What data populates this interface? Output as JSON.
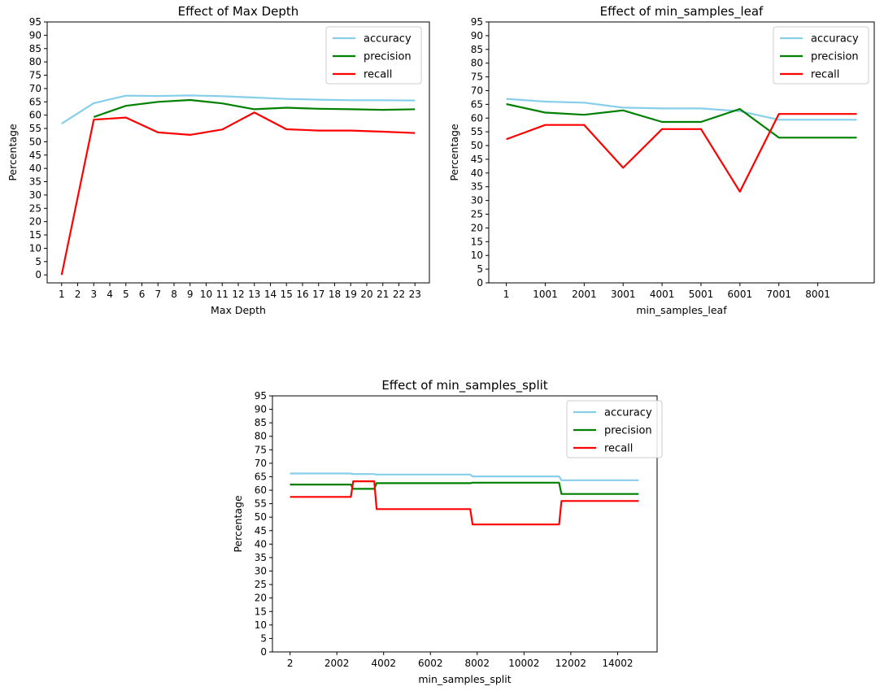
{
  "charts": [
    {
      "type": "line",
      "title": "Effect of Max Depth",
      "xlabel": "Max Depth",
      "ylabel": "Percentage",
      "xlim": [
        0.1,
        23.9
      ],
      "ylim": [
        -3,
        95
      ],
      "xticks": [
        1,
        2,
        3,
        4,
        5,
        6,
        7,
        8,
        9,
        10,
        11,
        12,
        13,
        14,
        15,
        16,
        17,
        18,
        19,
        20,
        21,
        22,
        23
      ],
      "xtick_labels": [
        "1",
        "2",
        "3",
        "4",
        "5",
        "6",
        "7",
        "8",
        "9",
        "10",
        "11",
        "12",
        "13",
        "14",
        "15",
        "16",
        "17",
        "18",
        "19",
        "20",
        "21",
        "22",
        "23"
      ],
      "yticks": [
        0,
        5,
        10,
        15,
        20,
        25,
        30,
        35,
        40,
        45,
        50,
        55,
        60,
        65,
        70,
        75,
        80,
        85,
        90,
        95
      ],
      "legend": "top-right",
      "series": [
        {
          "name": "accuracy",
          "color": "#87ceeb",
          "x": [
            1,
            3,
            5,
            7,
            9,
            11,
            13,
            15,
            17,
            19,
            21,
            23
          ],
          "y": [
            56.8,
            64.5,
            67.3,
            67.2,
            67.4,
            67.1,
            66.6,
            66.1,
            65.8,
            65.6,
            65.6,
            65.5
          ]
        },
        {
          "name": "precision",
          "color": "#008000",
          "x": [
            3,
            5,
            7,
            9,
            11,
            13,
            15,
            17,
            19,
            21,
            23
          ],
          "y": [
            59.3,
            63.5,
            65.0,
            65.7,
            64.4,
            62.2,
            62.8,
            62.4,
            62.2,
            62.0,
            62.2
          ]
        },
        {
          "name": "recall",
          "color": "#ff0000",
          "x": [
            1,
            3,
            5,
            7,
            9,
            11,
            13,
            15,
            17,
            19,
            21,
            23
          ],
          "y": [
            0,
            58.3,
            59.1,
            53.5,
            52.6,
            54.6,
            61.0,
            54.7,
            54.2,
            54.2,
            53.8,
            53.3
          ]
        }
      ]
    },
    {
      "type": "line",
      "title": "Effect of min_samples_leaf",
      "xlabel": "min_samples_leaf",
      "ylabel": "Percentage",
      "xlim": [
        -450,
        9451
      ],
      "ylim": [
        0,
        95
      ],
      "xticks": [
        1,
        1001,
        2001,
        3001,
        4001,
        5001,
        6001,
        7001,
        8001
      ],
      "xtick_labels": [
        "1",
        "1001",
        "2001",
        "3001",
        "4001",
        "5001",
        "6001",
        "7001",
        "8001"
      ],
      "yticks": [
        0,
        5,
        10,
        15,
        20,
        25,
        30,
        35,
        40,
        45,
        50,
        55,
        60,
        65,
        70,
        75,
        80,
        85,
        90,
        95
      ],
      "legend": "top-right",
      "series": [
        {
          "name": "accuracy",
          "color": "#87ceeb",
          "x": [
            1,
            1001,
            2001,
            3001,
            4001,
            5001,
            6001,
            7001,
            8001,
            9001
          ],
          "y": [
            67.0,
            66.0,
            65.6,
            63.8,
            63.5,
            63.5,
            62.5,
            59.4,
            59.4,
            59.4
          ]
        },
        {
          "name": "precision",
          "color": "#008000",
          "x": [
            1,
            1001,
            2001,
            3001,
            4001,
            5001,
            6001,
            7001,
            8001,
            9001
          ],
          "y": [
            65.1,
            62.0,
            61.2,
            62.8,
            58.6,
            58.6,
            63.3,
            52.9,
            52.9,
            52.9
          ]
        },
        {
          "name": "recall",
          "color": "#ff0000",
          "x": [
            1,
            1001,
            2001,
            3001,
            4001,
            5001,
            6001,
            7001,
            8001,
            9001
          ],
          "y": [
            52.3,
            57.5,
            57.5,
            41.9,
            56.0,
            56.0,
            33.2,
            61.5,
            61.5,
            61.5
          ]
        }
      ]
    },
    {
      "type": "line",
      "title": "Effect of min_samples_split",
      "xlabel": "min_samples_split",
      "ylabel": "Percentage",
      "xlim": [
        -750,
        15690
      ],
      "ylim": [
        0,
        95
      ],
      "xticks": [
        2,
        2002,
        4002,
        6002,
        8002,
        10002,
        12002,
        14002
      ],
      "xtick_labels": [
        "2",
        "2002",
        "4002",
        "6002",
        "8002",
        "10002",
        "12002",
        "14002"
      ],
      "yticks": [
        0,
        5,
        10,
        15,
        20,
        25,
        30,
        35,
        40,
        45,
        50,
        55,
        60,
        65,
        70,
        75,
        80,
        85,
        90,
        95
      ],
      "legend": "top-right",
      "series": [
        {
          "name": "accuracy",
          "color": "#87ceeb",
          "x": [
            2,
            2602,
            2702,
            3602,
            3702,
            7702,
            7802,
            11502,
            11602,
            14902
          ],
          "y": [
            66.2,
            66.2,
            66.0,
            66.0,
            65.8,
            65.8,
            65.1,
            65.1,
            63.7,
            63.7
          ]
        },
        {
          "name": "precision",
          "color": "#008000",
          "x": [
            2,
            2602,
            2702,
            3602,
            3702,
            7702,
            7802,
            11502,
            11602,
            14902
          ],
          "y": [
            62.1,
            62.1,
            60.5,
            60.5,
            62.6,
            62.6,
            62.8,
            62.8,
            58.6,
            58.6
          ]
        },
        {
          "name": "recall",
          "color": "#ff0000",
          "x": [
            2,
            2602,
            2702,
            3602,
            3702,
            7702,
            7802,
            11502,
            11602,
            14902
          ],
          "y": [
            57.5,
            57.5,
            63.3,
            63.3,
            53.0,
            53.0,
            47.3,
            47.3,
            56.0,
            56.0
          ]
        }
      ]
    }
  ]
}
